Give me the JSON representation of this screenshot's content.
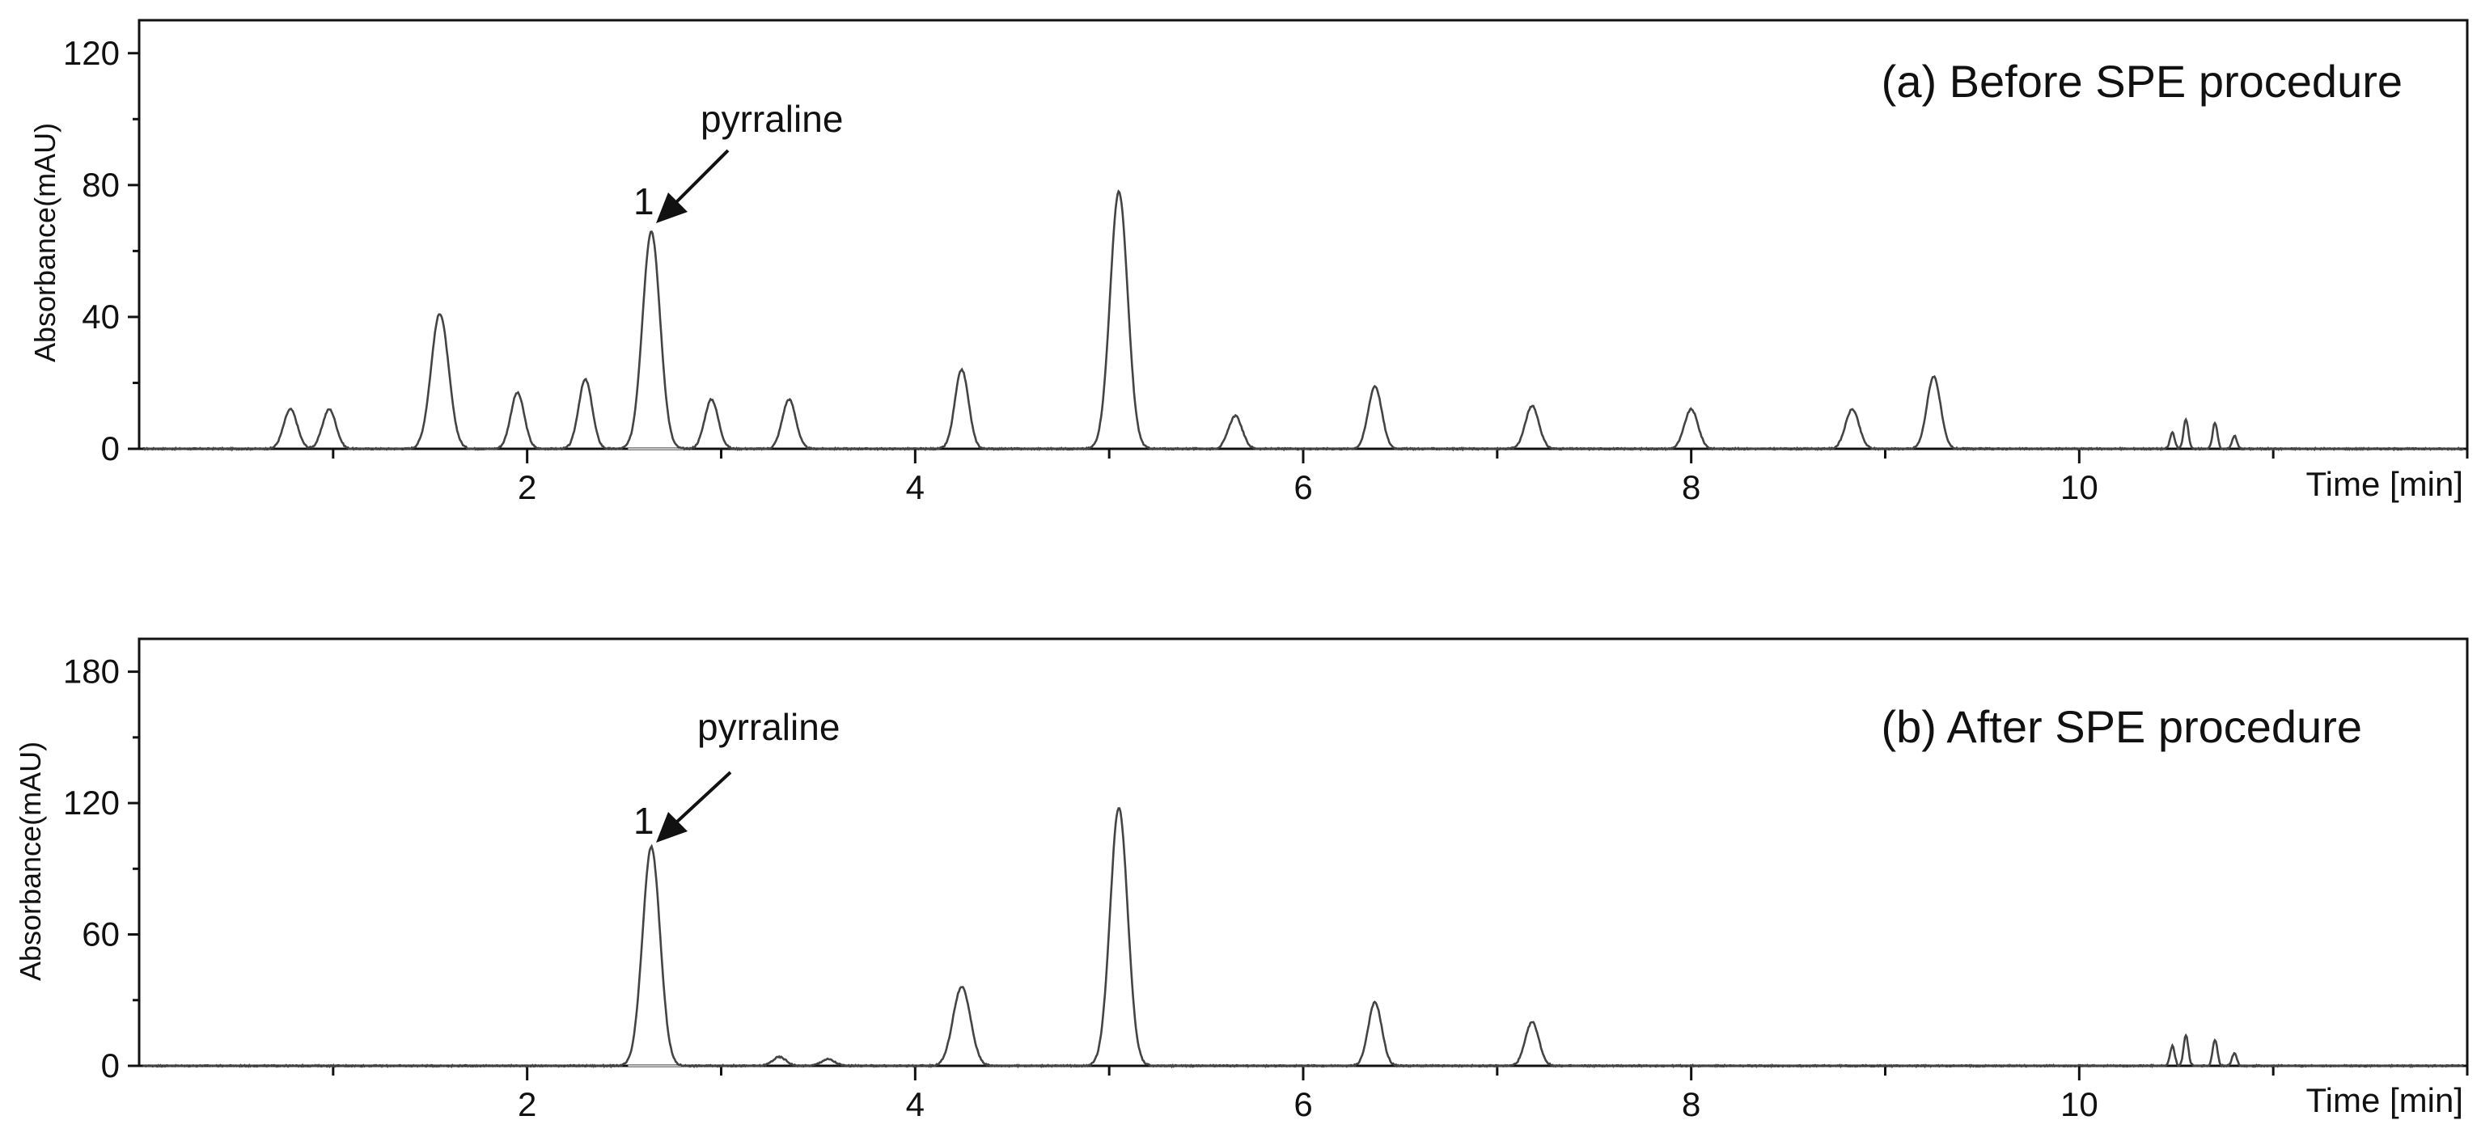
{
  "chart_data": [
    {
      "type": "line",
      "title": "(a) Before SPE procedure",
      "xlabel": "Time [min]",
      "ylabel": "Absorbance(mAU)",
      "xlim": [
        0,
        12
      ],
      "ylim": [
        0,
        130
      ],
      "xticks": [
        2,
        4,
        6,
        8,
        10
      ],
      "yticks": [
        0,
        40,
        80,
        120
      ],
      "grid": false,
      "annotation": {
        "label": "pyrraline",
        "peak_number": "1",
        "x": 2.64,
        "y": 66
      },
      "series": [
        {
          "peaks": [
            {
              "rt": 0.78,
              "height": 12
            },
            {
              "rt": 0.98,
              "height": 12
            },
            {
              "rt": 1.55,
              "height": 41
            },
            {
              "rt": 1.95,
              "height": 17
            },
            {
              "rt": 2.3,
              "height": 21
            },
            {
              "rt": 2.64,
              "height": 66
            },
            {
              "rt": 2.95,
              "height": 15
            },
            {
              "rt": 3.35,
              "height": 15
            },
            {
              "rt": 4.24,
              "height": 24
            },
            {
              "rt": 5.05,
              "height": 78
            },
            {
              "rt": 5.65,
              "height": 10
            },
            {
              "rt": 6.37,
              "height": 19
            },
            {
              "rt": 7.18,
              "height": 13
            },
            {
              "rt": 8.0,
              "height": 12
            },
            {
              "rt": 8.83,
              "height": 12
            },
            {
              "rt": 9.25,
              "height": 22
            },
            {
              "rt": 10.48,
              "height": 5
            },
            {
              "rt": 10.55,
              "height": 9
            },
            {
              "rt": 10.7,
              "height": 8
            },
            {
              "rt": 10.8,
              "height": 4
            }
          ]
        }
      ]
    },
    {
      "type": "line",
      "title": "(b) After SPE procedure",
      "xlabel": "Time [min]",
      "ylabel": "Absorbance(mAU)",
      "xlim": [
        0,
        12
      ],
      "ylim": [
        0,
        195
      ],
      "xticks": [
        2,
        4,
        6,
        8,
        10
      ],
      "yticks": [
        0,
        60,
        120,
        180
      ],
      "grid": false,
      "annotation": {
        "label": "pyrraline",
        "peak_number": "1",
        "x": 2.64,
        "y": 100
      },
      "series": [
        {
          "peaks": [
            {
              "rt": 2.64,
              "height": 100
            },
            {
              "rt": 3.3,
              "height": 4
            },
            {
              "rt": 3.55,
              "height": 3
            },
            {
              "rt": 4.24,
              "height": 36
            },
            {
              "rt": 5.05,
              "height": 118
            },
            {
              "rt": 6.37,
              "height": 29
            },
            {
              "rt": 7.18,
              "height": 20
            },
            {
              "rt": 10.48,
              "height": 9
            },
            {
              "rt": 10.55,
              "height": 14
            },
            {
              "rt": 10.7,
              "height": 12
            },
            {
              "rt": 10.8,
              "height": 6
            }
          ]
        }
      ]
    }
  ]
}
